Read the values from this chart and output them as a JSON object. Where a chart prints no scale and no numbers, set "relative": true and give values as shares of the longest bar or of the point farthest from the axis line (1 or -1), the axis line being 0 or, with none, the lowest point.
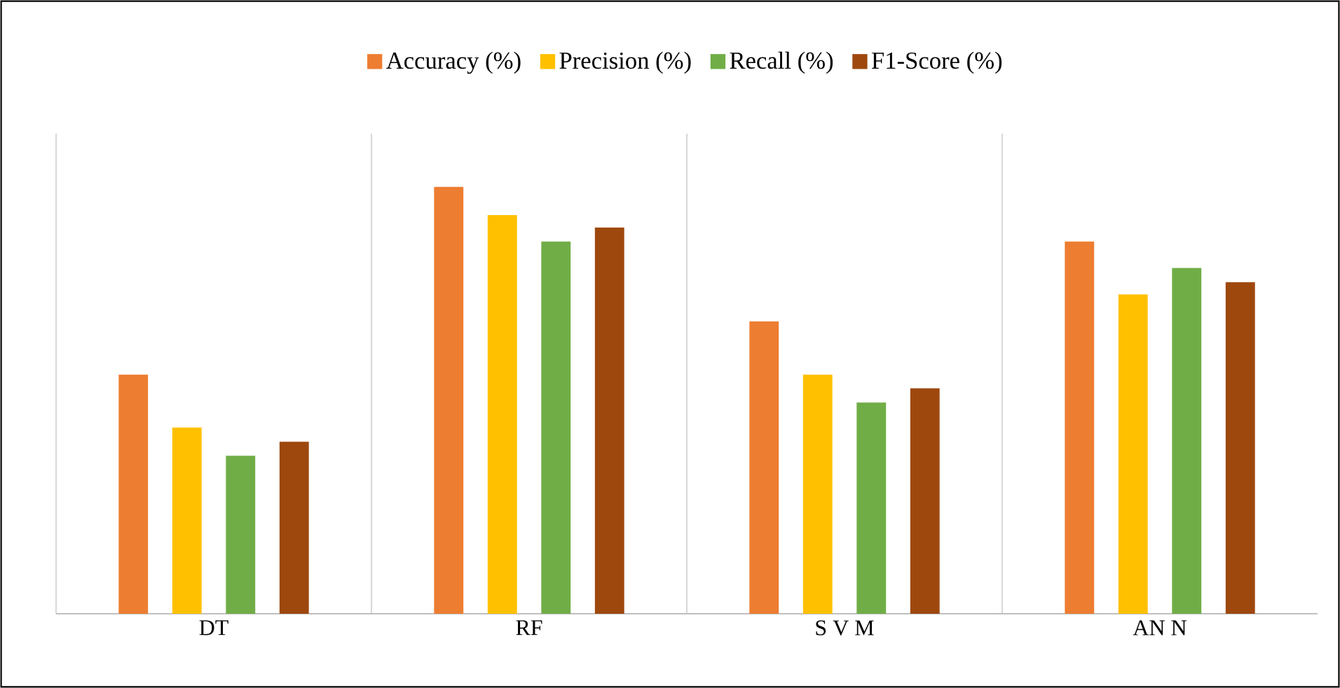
{
  "chart_data": {
    "type": "bar",
    "relative": true,
    "categories": [
      "DT",
      "RF",
      "S V M",
      "AN N"
    ],
    "series": [
      {
        "name": "Accuracy (%)",
        "color": "#ed7d31",
        "values": [
          0.56,
          1,
          0.685,
          0.872
        ]
      },
      {
        "name": "Precision (%)",
        "color": "#ffc000",
        "values": [
          0.436,
          0.934,
          0.56,
          0.748
        ]
      },
      {
        "name": "Recall (%)",
        "color": "#70ad47",
        "values": [
          0.37,
          0.872,
          0.495,
          0.81
        ]
      },
      {
        "name": "F1-Score (%)",
        "color": "#9e480e",
        "values": [
          0.403,
          0.905,
          0.528,
          0.777
        ]
      }
    ],
    "grid": "x",
    "legend": "top"
  }
}
